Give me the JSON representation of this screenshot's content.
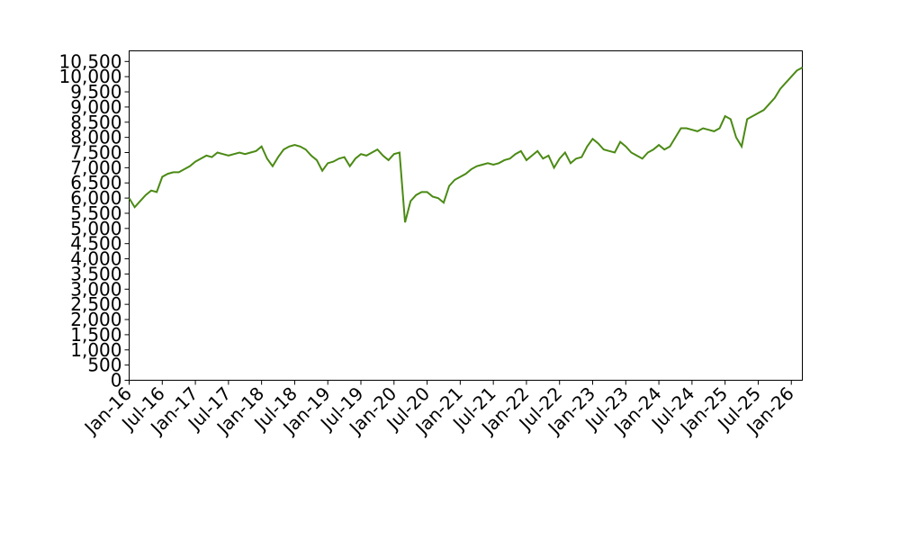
{
  "chart_data": {
    "type": "line",
    "x": [
      "Jan-16",
      null,
      null,
      null,
      null,
      null,
      "Jul-16",
      null,
      null,
      null,
      null,
      null,
      "Jan-17",
      null,
      null,
      null,
      null,
      null,
      "Jul-17",
      null,
      null,
      null,
      null,
      null,
      "Jan-18",
      null,
      null,
      null,
      null,
      null,
      "Jul-18",
      null,
      null,
      null,
      null,
      null,
      "Jan-19",
      null,
      null,
      null,
      null,
      null,
      "Jul-19",
      null,
      null,
      null,
      null,
      null,
      "Jan-20",
      null,
      null,
      null,
      null,
      null,
      "Jul-20",
      null,
      null,
      null,
      null,
      null,
      "Jan-21",
      null,
      null,
      null,
      null,
      null,
      "Jul-21",
      null,
      null,
      null,
      null,
      null,
      "Jan-22",
      null,
      null,
      null,
      null,
      null,
      "Jul-22",
      null,
      null,
      null,
      null,
      null,
      "Jan-23",
      null,
      null,
      null,
      null,
      null,
      "Jul-23",
      null,
      null,
      null,
      null,
      null,
      "Jan-24",
      null,
      null,
      null,
      null,
      null,
      "Jul-24",
      null,
      null,
      null,
      null,
      null,
      "Jan-25",
      null,
      null,
      null,
      null,
      null,
      "Jul-25",
      null,
      null,
      null,
      null,
      null,
      "Jan-26",
      null,
      null
    ],
    "series": [
      {
        "color": "#4b8a14",
        "values": [
          6000,
          5700,
          5900,
          6100,
          6250,
          6200,
          6700,
          6800,
          6850,
          6850,
          6950,
          7050,
          7200,
          7300,
          7400,
          7350,
          7500,
          7450,
          7400,
          7450,
          7500,
          7450,
          7500,
          7550,
          7700,
          7300,
          7050,
          7350,
          7600,
          7700,
          7750,
          7700,
          7600,
          7400,
          7250,
          6900,
          7150,
          7200,
          7300,
          7350,
          7050,
          7300,
          7450,
          7400,
          7500,
          7600,
          7400,
          7250,
          7450,
          7500,
          5200,
          5900,
          6100,
          6200,
          6200,
          6050,
          6000,
          5850,
          6400,
          6600,
          6700,
          6800,
          6950,
          7050,
          7100,
          7150,
          7100,
          7150,
          7250,
          7300,
          7450,
          7550,
          7250,
          7400,
          7550,
          7300,
          7400,
          7000,
          7300,
          7500,
          7150,
          7300,
          7350,
          7700,
          7950,
          7800,
          7600,
          7550,
          7500,
          7850,
          7700,
          7500,
          7400,
          7300,
          7500,
          7600,
          7750,
          7600,
          7700,
          8000,
          8300,
          8300,
          8250,
          8200,
          8300,
          8250,
          8200,
          8300,
          8700,
          8600,
          8000,
          7700,
          8600,
          8700,
          8800,
          8900,
          9100,
          9300,
          9600,
          9800,
          10000,
          10200,
          10300
        ]
      }
    ],
    "ylim": [
      0,
      10850
    ],
    "yticks": [
      0,
      500,
      {
        "value": 1000,
        "label": "1,000"
      },
      {
        "value": 1500,
        "label": "1,500"
      },
      {
        "value": 2000,
        "label": "2,000"
      },
      {
        "value": 2500,
        "label": "2,500"
      },
      {
        "value": 3000,
        "label": "3,000"
      },
      {
        "value": 3500,
        "label": "3,500"
      },
      {
        "value": 4000,
        "label": "4,000"
      },
      {
        "value": 4500,
        "label": "4,500"
      },
      {
        "value": 5000,
        "label": "5,000"
      },
      {
        "value": 5500,
        "label": "5,500"
      },
      {
        "value": 6000,
        "label": "6,000"
      },
      {
        "value": 6500,
        "label": "6,500"
      },
      {
        "value": 7000,
        "label": "7,000"
      },
      {
        "value": 7500,
        "label": "7,500"
      },
      {
        "value": 8000,
        "label": "8,000"
      },
      {
        "value": 8500,
        "label": "8,500"
      },
      {
        "value": 9000,
        "label": "9,000"
      },
      {
        "value": 9500,
        "label": "9,500"
      },
      {
        "value": 10000,
        "label": "10,000"
      },
      {
        "value": 10500,
        "label": "10,500"
      }
    ]
  }
}
